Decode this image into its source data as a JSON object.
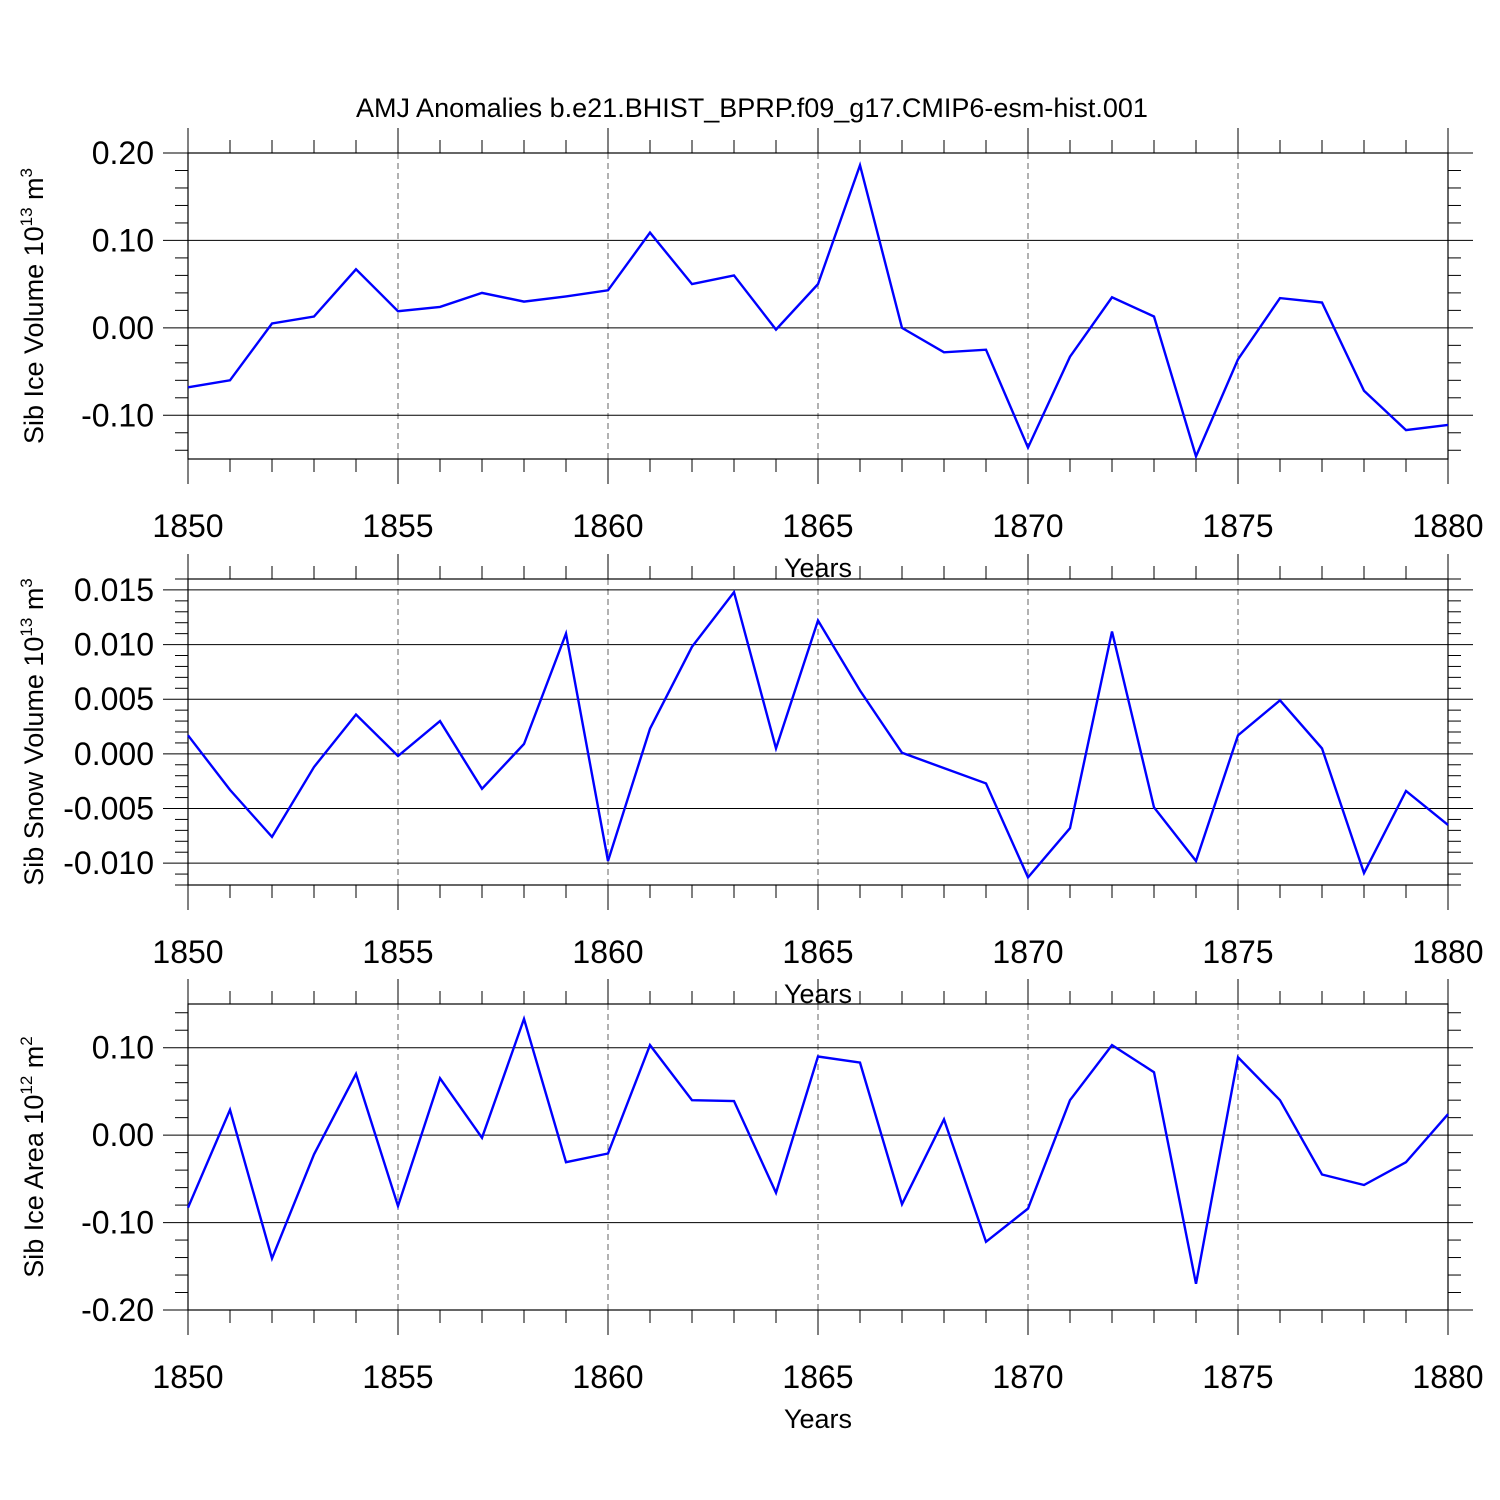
{
  "title": "AMJ Anomalies b.e21.BHIST_BPRP.f09_g17.CMIP6-esm-hist.001",
  "line_color": "#0000ff",
  "chart_data": [
    {
      "type": "line",
      "ylabel_main": "Sib Ice Volume 10",
      "ylabel_exp": "13",
      "ylabel_unit": " m",
      "ylabel_unit_exp": "3",
      "xlabel": "Years",
      "xlim": [
        1850,
        1880
      ],
      "ylim": [
        -0.15,
        0.2
      ],
      "yticks": [
        0.2,
        0.1,
        0.0,
        -0.1
      ],
      "ytick_labels": [
        "0.20",
        "0.10",
        "0.00",
        "-0.10"
      ],
      "ytick_minor_step": 0.02,
      "xticks": [
        1850,
        1855,
        1860,
        1865,
        1870,
        1875,
        1880
      ],
      "xtick_labels": [
        "1850",
        "1855",
        "1860",
        "1865",
        "1870",
        "1875",
        "1880"
      ],
      "x": [
        1850,
        1851,
        1852,
        1853,
        1854,
        1855,
        1856,
        1857,
        1858,
        1859,
        1860,
        1861,
        1862,
        1863,
        1864,
        1865,
        1866,
        1867,
        1868,
        1869,
        1870,
        1871,
        1872,
        1873,
        1874,
        1875,
        1876,
        1877,
        1878,
        1879,
        1880
      ],
      "values": [
        -0.068,
        -0.06,
        0.005,
        0.013,
        0.067,
        0.019,
        0.024,
        0.04,
        0.03,
        0.036,
        0.043,
        0.109,
        0.05,
        0.06,
        -0.002,
        0.05,
        0.186,
        0.0,
        -0.028,
        -0.025,
        -0.137,
        -0.033,
        0.035,
        0.013,
        -0.147,
        -0.036,
        0.034,
        0.029,
        -0.072,
        -0.117,
        -0.111
      ]
    },
    {
      "type": "line",
      "ylabel_main": "Sib Snow Volume 10",
      "ylabel_exp": "13",
      "ylabel_unit": " m",
      "ylabel_unit_exp": "3",
      "xlabel": "Years",
      "xlim": [
        1850,
        1880
      ],
      "ylim": [
        -0.012,
        0.016
      ],
      "yticks": [
        0.015,
        0.01,
        0.005,
        0.0,
        -0.005,
        -0.01
      ],
      "ytick_labels": [
        "0.015",
        "0.010",
        "0.005",
        "0.000",
        "-0.005",
        "-0.010"
      ],
      "ytick_minor_step": 0.001,
      "xticks": [
        1850,
        1855,
        1860,
        1865,
        1870,
        1875,
        1880
      ],
      "xtick_labels": [
        "1850",
        "1855",
        "1860",
        "1865",
        "1870",
        "1875",
        "1880"
      ],
      "x": [
        1850,
        1851,
        1852,
        1853,
        1854,
        1855,
        1856,
        1857,
        1858,
        1859,
        1860,
        1861,
        1862,
        1863,
        1864,
        1865,
        1866,
        1867,
        1868,
        1869,
        1870,
        1871,
        1872,
        1873,
        1874,
        1875,
        1876,
        1877,
        1878,
        1879,
        1880
      ],
      "values": [
        0.0017,
        -0.0033,
        -0.0076,
        -0.0012,
        0.0036,
        -0.0002,
        0.003,
        -0.0032,
        0.0009,
        0.011,
        -0.0098,
        0.0023,
        0.0098,
        0.0148,
        0.0005,
        0.0122,
        0.0058,
        0.0001,
        -0.0013,
        -0.0027,
        -0.0113,
        -0.0068,
        0.0112,
        -0.0049,
        -0.0098,
        0.0017,
        0.0049,
        0.0005,
        -0.0109,
        -0.0034,
        -0.0065
      ]
    },
    {
      "type": "line",
      "ylabel_main": "Sib Ice Area 10",
      "ylabel_exp": "12",
      "ylabel_unit": " m",
      "ylabel_unit_exp": "2",
      "xlabel": "Years",
      "xlim": [
        1850,
        1880
      ],
      "ylim": [
        -0.2,
        0.15
      ],
      "yticks": [
        0.1,
        0.0,
        -0.1,
        -0.2
      ],
      "ytick_labels": [
        "0.10",
        "0.00",
        "-0.10",
        "-0.20"
      ],
      "ytick_minor_step": 0.02,
      "xticks": [
        1850,
        1855,
        1860,
        1865,
        1870,
        1875,
        1880
      ],
      "xtick_labels": [
        "1850",
        "1855",
        "1860",
        "1865",
        "1870",
        "1875",
        "1880"
      ],
      "x": [
        1850,
        1851,
        1852,
        1853,
        1854,
        1855,
        1856,
        1857,
        1858,
        1859,
        1860,
        1861,
        1862,
        1863,
        1864,
        1865,
        1866,
        1867,
        1868,
        1869,
        1870,
        1871,
        1872,
        1873,
        1874,
        1875,
        1876,
        1877,
        1878,
        1879,
        1880
      ],
      "values": [
        -0.083,
        0.029,
        -0.141,
        -0.022,
        0.07,
        -0.081,
        0.065,
        -0.003,
        0.133,
        -0.031,
        -0.021,
        0.103,
        0.04,
        0.039,
        -0.066,
        0.09,
        0.083,
        -0.079,
        0.018,
        -0.122,
        -0.084,
        0.04,
        0.103,
        0.072,
        -0.17,
        0.089,
        0.04,
        -0.045,
        -0.057,
        -0.031,
        0.024
      ]
    }
  ]
}
